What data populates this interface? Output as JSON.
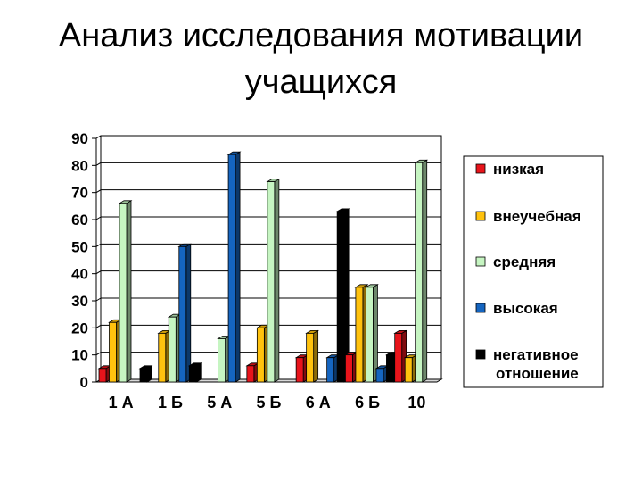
{
  "slide": {
    "title_line1": "Анализ исследования мотивации",
    "title_line2": "учащихся"
  },
  "chart_data": {
    "type": "bar",
    "title": "Анализ исследования мотивации учащихся",
    "categories": [
      "1 А",
      "1 Б",
      "5 А",
      "5 Б",
      "6 А",
      "6 Б",
      "10"
    ],
    "ylim": [
      0,
      90
    ],
    "yticks": [
      0,
      10,
      20,
      30,
      40,
      50,
      60,
      70,
      80,
      90
    ],
    "grid": true,
    "legend_position": "right",
    "series": [
      {
        "name": "низкая",
        "color": "#e8141b",
        "values": [
          5,
          0,
          0,
          6,
          9,
          10,
          18
        ]
      },
      {
        "name": "внеучебная",
        "color": "#ffc20e",
        "values": [
          22,
          18,
          0,
          20,
          18,
          35,
          9
        ]
      },
      {
        "name": "средняя",
        "color": "#c6f5c2",
        "values": [
          66,
          24,
          16,
          74,
          0,
          35,
          81
        ]
      },
      {
        "name": "высокая",
        "color": "#1565c0",
        "values": [
          0,
          50,
          84,
          0,
          9,
          5,
          0
        ]
      },
      {
        "name": "негативное отношение",
        "color": "#000000",
        "values": [
          5,
          6,
          0,
          0,
          63,
          10,
          0
        ]
      }
    ]
  }
}
